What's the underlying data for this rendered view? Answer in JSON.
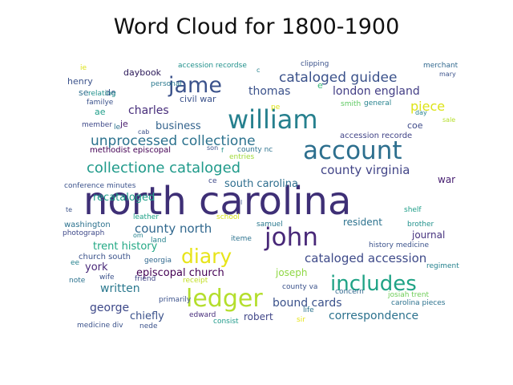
{
  "chart_data": {
    "type": "word_cloud",
    "title": "Word Cloud for 1800-1900",
    "colormap": "viridis",
    "background": "#ffffff",
    "words": [
      {
        "text": "north carolina",
        "weight": 1.0,
        "color": "#3e2f76"
      },
      {
        "text": "william",
        "weight": 0.62,
        "color": "#26808e"
      },
      {
        "text": "account",
        "weight": 0.6,
        "color": "#2d6f8e"
      },
      {
        "text": "john",
        "weight": 0.6,
        "color": "#482878"
      },
      {
        "text": "ledger",
        "weight": 0.56,
        "color": "#b4de2c"
      },
      {
        "text": "includes",
        "weight": 0.47,
        "color": "#20a386"
      },
      {
        "text": "jame",
        "weight": 0.5,
        "color": "#3b528b"
      },
      {
        "text": "diary",
        "weight": 0.45,
        "color": "#e7e419"
      },
      {
        "text": "unprocessed collectione",
        "weight": 0.27,
        "color": "#2c728e"
      },
      {
        "text": "collectione cataloged",
        "weight": 0.28,
        "color": "#1f9a8a"
      },
      {
        "text": "cataloged guidee",
        "weight": 0.26,
        "color": "#3b528b"
      },
      {
        "text": "county virginia",
        "weight": 0.22,
        "color": "#414487"
      },
      {
        "text": "county north",
        "weight": 0.22,
        "color": "#31688e"
      },
      {
        "text": "cataloged accession",
        "weight": 0.21,
        "color": "#3e4a89"
      },
      {
        "text": "piece",
        "weight": 0.23,
        "color": "#dde318"
      },
      {
        "text": "thomas",
        "weight": 0.2,
        "color": "#3b528b"
      },
      {
        "text": "charles",
        "weight": 0.2,
        "color": "#472d7b"
      },
      {
        "text": "london england",
        "weight": 0.18,
        "color": "#433e85"
      },
      {
        "text": "written",
        "weight": 0.2,
        "color": "#2a788e"
      },
      {
        "text": "george",
        "weight": 0.2,
        "color": "#3e4989"
      },
      {
        "text": "bound cards",
        "weight": 0.2,
        "color": "#3b528b"
      },
      {
        "text": "correspondence",
        "weight": 0.2,
        "color": "#2c728e"
      },
      {
        "text": "business",
        "weight": 0.17,
        "color": "#33638d"
      },
      {
        "text": "south carolina",
        "weight": 0.17,
        "color": "#2e6e8e"
      },
      {
        "text": "recataloged",
        "weight": 0.16,
        "color": "#1f9e89"
      },
      {
        "text": "trent history",
        "weight": 0.16,
        "color": "#22a884"
      },
      {
        "text": "york",
        "weight": 0.16,
        "color": "#482878"
      },
      {
        "text": "episcopal church",
        "weight": 0.16,
        "color": "#440154"
      },
      {
        "text": "journal",
        "weight": 0.15,
        "color": "#46327e"
      },
      {
        "text": "chiefly",
        "weight": 0.17,
        "color": "#3b528b"
      },
      {
        "text": "robert",
        "weight": 0.15,
        "color": "#404688"
      },
      {
        "text": "joseph",
        "weight": 0.14,
        "color": "#8fd744"
      },
      {
        "text": "resident",
        "weight": 0.14,
        "color": "#2c728e"
      },
      {
        "text": "war",
        "weight": 0.14,
        "color": "#482071"
      },
      {
        "text": "henry",
        "weight": 0.13,
        "color": "#3b528b"
      },
      {
        "text": "civil war",
        "weight": 0.13,
        "color": "#3b528b"
      },
      {
        "text": "daybook",
        "weight": 0.13,
        "color": "#2a1858"
      },
      {
        "text": "coe",
        "weight": 0.12,
        "color": "#3e4a89"
      },
      {
        "text": "se",
        "weight": 0.12,
        "color": "#2e6e8e"
      },
      {
        "text": "de",
        "weight": 0.12,
        "color": "#3b528b"
      },
      {
        "text": "ae",
        "weight": 0.12,
        "color": "#1f9e89"
      },
      {
        "text": "je",
        "weight": 0.12,
        "color": "#481b6d"
      },
      {
        "text": "e",
        "weight": 0.13,
        "color": "#35b779"
      },
      {
        "text": "methodist episcopal",
        "weight": 0.09,
        "color": "#440154"
      },
      {
        "text": "accession recorde",
        "weight": 0.09,
        "color": "#414487"
      },
      {
        "text": "washington",
        "weight": 0.09,
        "color": "#2c728e"
      },
      {
        "text": "church south",
        "weight": 0.09,
        "color": "#3b528b"
      },
      {
        "text": "josiah trent",
        "weight": 0.08,
        "color": "#6ece58"
      },
      {
        "text": "edward",
        "weight": 0.08,
        "color": "#472d7b"
      },
      {
        "text": "carolina pieces",
        "weight": 0.07,
        "color": "#2c728e"
      },
      {
        "text": "history medicine",
        "weight": 0.07,
        "color": "#3b528b"
      },
      {
        "text": "conference minutes",
        "weight": 0.07,
        "color": "#3b528b"
      },
      {
        "text": "accession recordse",
        "weight": 0.07,
        "color": "#21918c"
      },
      {
        "text": "general",
        "weight": 0.07,
        "color": "#26828e"
      },
      {
        "text": "relating",
        "weight": 0.07,
        "color": "#21918c"
      },
      {
        "text": "familye",
        "weight": 0.08,
        "color": "#3b528b"
      },
      {
        "text": "personal",
        "weight": 0.07,
        "color": "#2a788e"
      },
      {
        "text": "photograph",
        "weight": 0.07,
        "color": "#3e4989"
      },
      {
        "text": "medicine div",
        "weight": 0.07,
        "color": "#3b528b"
      },
      {
        "text": "primarily",
        "weight": 0.07,
        "color": "#3b528b"
      },
      {
        "text": "georgia",
        "weight": 0.07,
        "color": "#31688e"
      },
      {
        "text": "brother",
        "weight": 0.07,
        "color": "#21918c"
      },
      {
        "text": "merchant",
        "weight": 0.07,
        "color": "#31688e"
      },
      {
        "text": "clipping",
        "weight": 0.07,
        "color": "#3b528b"
      },
      {
        "text": "smith",
        "weight": 0.06,
        "color": "#5ec962"
      },
      {
        "text": "member",
        "weight": 0.06,
        "color": "#3e4989"
      },
      {
        "text": "leather",
        "weight": 0.06,
        "color": "#1fa187"
      },
      {
        "text": "school",
        "weight": 0.06,
        "color": "#d8e219"
      },
      {
        "text": "samuel",
        "weight": 0.06,
        "color": "#2a788e"
      },
      {
        "text": "iteme",
        "weight": 0.07,
        "color": "#2c728e"
      },
      {
        "text": "receipt",
        "weight": 0.06,
        "color": "#c2df23"
      },
      {
        "text": "consist",
        "weight": 0.06,
        "color": "#1f9a8a"
      },
      {
        "text": "county va",
        "weight": 0.06,
        "color": "#3b528b"
      },
      {
        "text": "concern",
        "weight": 0.06,
        "color": "#31688e"
      },
      {
        "text": "regiment",
        "weight": 0.06,
        "color": "#26828e"
      },
      {
        "text": "county nc",
        "weight": 0.06,
        "color": "#2c728e"
      },
      {
        "text": "entries",
        "weight": 0.06,
        "color": "#a0da39"
      },
      {
        "text": "shelf",
        "weight": 0.06,
        "color": "#1f9e89"
      },
      {
        "text": "friend",
        "weight": 0.06,
        "color": "#404688"
      },
      {
        "text": "wife",
        "weight": 0.06,
        "color": "#3b528b"
      },
      {
        "text": "note",
        "weight": 0.06,
        "color": "#2c728e"
      },
      {
        "text": "life",
        "weight": 0.06,
        "color": "#2c728e"
      },
      {
        "text": "sir",
        "weight": 0.07,
        "color": "#e7e419"
      },
      {
        "text": "nede",
        "weight": 0.06,
        "color": "#3b528b"
      },
      {
        "text": "land",
        "weight": 0.06,
        "color": "#26828e"
      },
      {
        "text": "cab",
        "weight": 0.05,
        "color": "#3b528b"
      },
      {
        "text": "day",
        "weight": 0.05,
        "color": "#26828e"
      },
      {
        "text": "sale",
        "weight": 0.05,
        "color": "#b5de2b"
      },
      {
        "text": "mary",
        "weight": 0.05,
        "color": "#3b528b"
      },
      {
        "text": "son",
        "weight": 0.05,
        "color": "#3b528b"
      },
      {
        "text": "ie",
        "weight": 0.06,
        "color": "#dde318"
      },
      {
        "text": "pe",
        "weight": 0.06,
        "color": "#dde318"
      },
      {
        "text": "le",
        "weight": 0.06,
        "color": "#2c728e"
      },
      {
        "text": "ce",
        "weight": 0.06,
        "color": "#3e4989"
      },
      {
        "text": "ee",
        "weight": 0.06,
        "color": "#26828e"
      },
      {
        "text": "te",
        "weight": 0.05,
        "color": "#3b528b"
      },
      {
        "text": "om",
        "weight": 0.05,
        "color": "#26828e"
      },
      {
        "text": "c",
        "weight": 0.05,
        "color": "#26828e"
      },
      {
        "text": "f",
        "weight": 0.05,
        "color": "#21918c"
      },
      {
        "text": "l",
        "weight": 0.05,
        "color": "#3b528b"
      }
    ]
  }
}
